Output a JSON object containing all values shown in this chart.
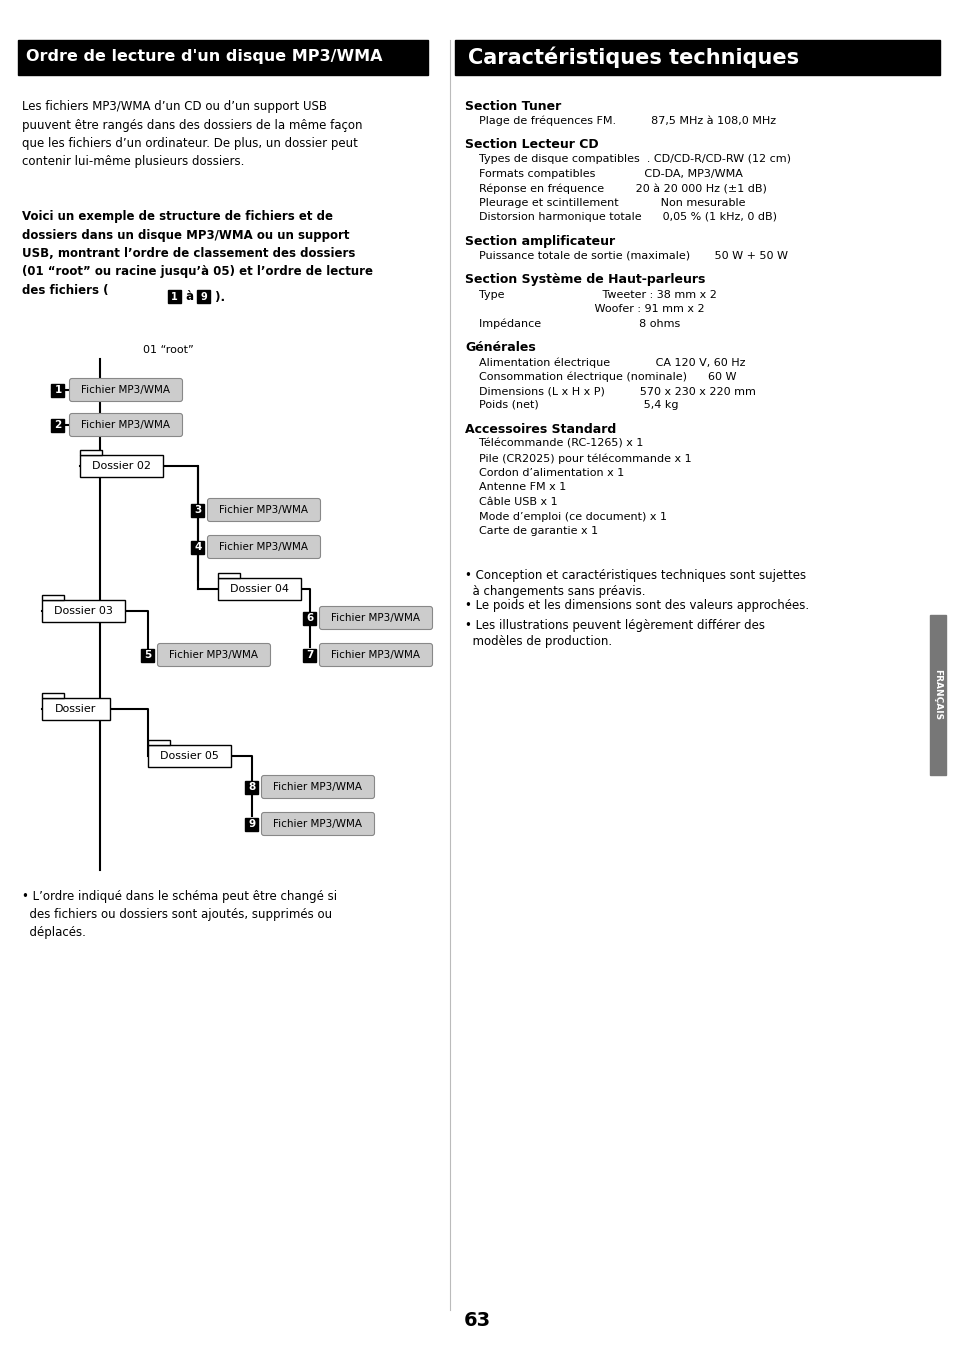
{
  "left_title": "Ordre de lecture d'un disque MP3/WMA",
  "right_title": "Caractéristiques techniques",
  "bg_color": "#ffffff",
  "header_bg": "#000000",
  "header_fg": "#ffffff",
  "page_number": "63",
  "right_side_label": "FRANÇAIS"
}
